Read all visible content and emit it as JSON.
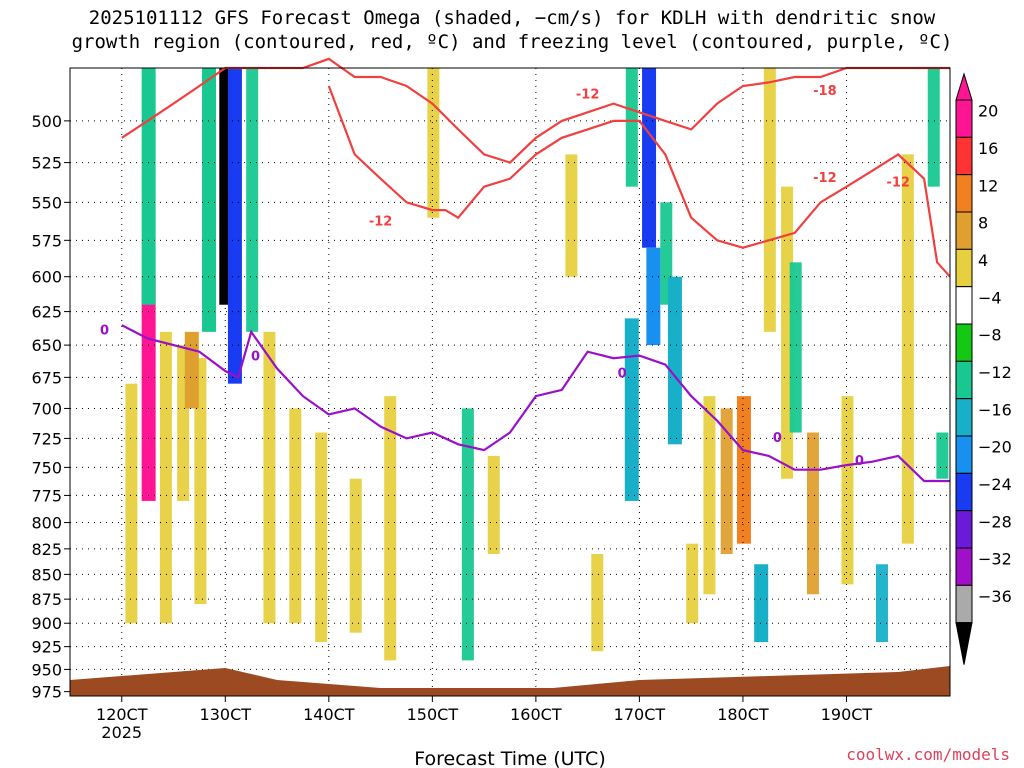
{
  "chart_data": {
    "type": "heatmap",
    "title": "2025101112 GFS Forecast Omega (shaded, −cm/s) for KDLH with dendritic snow",
    "subtitle": "growth region (contoured, red, ºC) and freezing level (contoured, purple, ºC)",
    "xlabel": "Forecast Time (UTC)",
    "x_ticks": [
      "120CT",
      "130CT",
      "140CT",
      "150CT",
      "160CT",
      "170CT",
      "180CT",
      "190CT"
    ],
    "x_year_label": "2025",
    "y_ticks": [
      "500",
      "525",
      "550",
      "575",
      "600",
      "625",
      "650",
      "675",
      "700",
      "725",
      "750",
      "775",
      "800",
      "825",
      "850",
      "875",
      "900",
      "925",
      "950",
      "975"
    ],
    "colorbar_labels": [
      "20",
      "16",
      "12",
      "8",
      "4",
      "−4",
      "−8",
      "−12",
      "−16",
      "−20",
      "−24",
      "−28",
      "−32",
      "−36"
    ],
    "colorbar_colors": [
      "#ff1493",
      "#ff3333",
      "#f08020",
      "#e0a030",
      "#e6d040",
      "#ffffff",
      "#14c814",
      "#18c890",
      "#18b0c8",
      "#1890f0",
      "#1a3cf0",
      "#6a1ad8",
      "#a010c8",
      "#aaaaaa",
      "#000000"
    ],
    "contour_labels": {
      "freezing_level": [
        "0",
        "0",
        "0",
        "0",
        "0"
      ],
      "dendritic": [
        "-12",
        "-12",
        "-12",
        "-12",
        "-18"
      ]
    },
    "freezing_level_series": {
      "name": "0",
      "x_hours": [
        0,
        6,
        12,
        18,
        24,
        27,
        30,
        36,
        42,
        48,
        54,
        60,
        66,
        72,
        78,
        84,
        90,
        96,
        102,
        108,
        114,
        120,
        126,
        132,
        138,
        144,
        150,
        156,
        162,
        168,
        174,
        180,
        186,
        192
      ],
      "y_hPa": [
        635,
        645,
        650,
        655,
        670,
        675,
        640,
        668,
        690,
        705,
        700,
        715,
        725,
        720,
        730,
        735,
        720,
        690,
        685,
        655,
        660,
        658,
        665,
        690,
        710,
        735,
        740,
        752,
        752,
        748,
        745,
        740,
        762,
        762
      ]
    },
    "dendritic_upper_series": {
      "name": "-12",
      "x_hours": [
        0,
        6,
        12,
        18,
        24,
        30,
        36,
        42,
        48,
        54,
        60,
        66,
        72,
        78,
        84,
        90,
        96,
        102,
        108,
        114,
        120,
        126,
        132,
        138,
        144,
        150,
        156,
        162,
        168,
        174,
        180,
        186,
        192
      ],
      "y_hPa": [
        510,
        500,
        490,
        480,
        470,
        470,
        470,
        470,
        465,
        475,
        475,
        480,
        490,
        505,
        520,
        525,
        510,
        500,
        495,
        490,
        495,
        500,
        505,
        490,
        480,
        478,
        475,
        475,
        470,
        470,
        470,
        470,
        470
      ]
    },
    "dendritic_lower_series": {
      "name": "-12",
      "x_hours": [
        48,
        54,
        60,
        66,
        72,
        75,
        78,
        84,
        90,
        96,
        102,
        108,
        114,
        120,
        126,
        132,
        138,
        144,
        150,
        156,
        162,
        168,
        174,
        180,
        186,
        189,
        192
      ],
      "y_hPa": [
        480,
        520,
        535,
        550,
        555,
        555,
        560,
        540,
        535,
        520,
        510,
        505,
        500,
        500,
        520,
        560,
        575,
        580,
        575,
        570,
        550,
        540,
        530,
        520,
        535,
        590,
        600
      ]
    },
    "shading_bands": [
      {
        "x_hour": 6.0,
        "p_top": 600,
        "p_bot": 780,
        "value": 20
      },
      {
        "x_hour": 6.0,
        "p_top": 470,
        "p_bot": 620,
        "value": -10
      },
      {
        "x_hour": 24.0,
        "p_top": 470,
        "p_bot": 620,
        "value": -36
      },
      {
        "x_hour": 26.0,
        "p_top": 470,
        "p_bot": 680,
        "value": -20
      },
      {
        "x_hour": 20.0,
        "p_top": 470,
        "p_bot": 640,
        "value": -8
      },
      {
        "x_hour": 16.0,
        "p_top": 640,
        "p_bot": 700,
        "value": 10
      },
      {
        "x_hour": 122.0,
        "p_top": 470,
        "p_bot": 580,
        "value": -20
      },
      {
        "x_hour": 123.0,
        "p_top": 580,
        "p_bot": 650,
        "value": -16
      },
      {
        "x_hour": 128.0,
        "p_top": 600,
        "p_bot": 730,
        "value": -14
      },
      {
        "x_hour": 118.0,
        "p_top": 630,
        "p_bot": 780,
        "value": -12
      },
      {
        "x_hour": 144.0,
        "p_top": 690,
        "p_bot": 820,
        "value": 12
      },
      {
        "x_hour": 148.0,
        "p_top": 840,
        "p_bot": 920,
        "value": -12
      }
    ],
    "ylim": [
      980,
      470
    ],
    "xlim_hours": [
      -12,
      192
    ]
  },
  "credit": "coolwx.com/models"
}
